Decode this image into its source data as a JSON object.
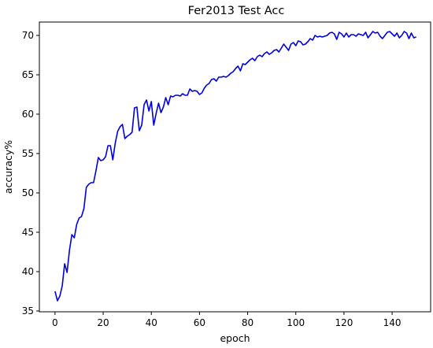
{
  "chart_data": {
    "type": "line",
    "title": "Fer2013 Test Acc",
    "xlabel": "epoch",
    "ylabel": "accuracy%",
    "xlim": [
      -6.5,
      156
    ],
    "ylim": [
      34.9,
      71.7
    ],
    "xticks": [
      0,
      20,
      40,
      60,
      80,
      100,
      120,
      140
    ],
    "yticks": [
      35,
      40,
      45,
      50,
      55,
      60,
      65,
      70
    ],
    "grid": false,
    "series": [
      {
        "color": "#0000dd",
        "points": [
          [
            0,
            37.5
          ],
          [
            1,
            36.3
          ],
          [
            2,
            36.9
          ],
          [
            3,
            38.2
          ],
          [
            4,
            41.0
          ],
          [
            5,
            39.9
          ],
          [
            6,
            42.7
          ],
          [
            7,
            44.7
          ],
          [
            8,
            44.3
          ],
          [
            9,
            46.0
          ],
          [
            10,
            46.8
          ],
          [
            11,
            47.0
          ],
          [
            12,
            48.0
          ],
          [
            13,
            50.7
          ],
          [
            14,
            51.1
          ],
          [
            15,
            51.3
          ],
          [
            16,
            51.3
          ],
          [
            17,
            52.8
          ],
          [
            18,
            54.5
          ],
          [
            19,
            54.1
          ],
          [
            20,
            54.2
          ],
          [
            21,
            54.6
          ],
          [
            22,
            56.0
          ],
          [
            23,
            56.0
          ],
          [
            24,
            54.2
          ],
          [
            25,
            56.3
          ],
          [
            26,
            57.8
          ],
          [
            27,
            58.4
          ],
          [
            28,
            58.7
          ],
          [
            29,
            56.9
          ],
          [
            30,
            57.2
          ],
          [
            31,
            57.4
          ],
          [
            32,
            57.7
          ],
          [
            33,
            60.8
          ],
          [
            34,
            60.9
          ],
          [
            35,
            57.9
          ],
          [
            36,
            58.6
          ],
          [
            37,
            61.2
          ],
          [
            38,
            61.8
          ],
          [
            39,
            60.4
          ],
          [
            40,
            61.6
          ],
          [
            41,
            58.6
          ],
          [
            42,
            60.1
          ],
          [
            43,
            61.4
          ],
          [
            44,
            60.2
          ],
          [
            45,
            60.9
          ],
          [
            46,
            62.1
          ],
          [
            47,
            61.2
          ],
          [
            48,
            62.3
          ],
          [
            49,
            62.2
          ],
          [
            50,
            62.4
          ],
          [
            51,
            62.4
          ],
          [
            52,
            62.3
          ],
          [
            53,
            62.6
          ],
          [
            54,
            62.4
          ],
          [
            55,
            62.4
          ],
          [
            56,
            63.2
          ],
          [
            57,
            62.9
          ],
          [
            58,
            63.0
          ],
          [
            59,
            62.9
          ],
          [
            60,
            62.5
          ],
          [
            61,
            62.7
          ],
          [
            62,
            63.3
          ],
          [
            63,
            63.7
          ],
          [
            64,
            63.9
          ],
          [
            65,
            64.4
          ],
          [
            66,
            64.5
          ],
          [
            67,
            64.2
          ],
          [
            68,
            64.7
          ],
          [
            69,
            64.7
          ],
          [
            70,
            64.8
          ],
          [
            71,
            64.7
          ],
          [
            72,
            64.9
          ],
          [
            73,
            65.2
          ],
          [
            74,
            65.4
          ],
          [
            75,
            65.8
          ],
          [
            76,
            66.1
          ],
          [
            77,
            65.5
          ],
          [
            78,
            66.4
          ],
          [
            79,
            66.3
          ],
          [
            80,
            66.6
          ],
          [
            81,
            66.9
          ],
          [
            82,
            67.1
          ],
          [
            83,
            66.8
          ],
          [
            84,
            67.3
          ],
          [
            85,
            67.5
          ],
          [
            86,
            67.3
          ],
          [
            87,
            67.7
          ],
          [
            88,
            67.9
          ],
          [
            89,
            67.6
          ],
          [
            90,
            67.8
          ],
          [
            91,
            68.1
          ],
          [
            92,
            68.2
          ],
          [
            93,
            67.9
          ],
          [
            94,
            68.4
          ],
          [
            95,
            68.9
          ],
          [
            96,
            68.5
          ],
          [
            97,
            68.1
          ],
          [
            98,
            68.9
          ],
          [
            99,
            69.1
          ],
          [
            100,
            68.7
          ],
          [
            101,
            69.3
          ],
          [
            102,
            69.2
          ],
          [
            103,
            68.8
          ],
          [
            104,
            68.9
          ],
          [
            105,
            69.2
          ],
          [
            106,
            69.6
          ],
          [
            107,
            69.4
          ],
          [
            108,
            70.0
          ],
          [
            109,
            69.8
          ],
          [
            110,
            69.9
          ],
          [
            111,
            69.8
          ],
          [
            112,
            69.9
          ],
          [
            113,
            70.0
          ],
          [
            114,
            70.3
          ],
          [
            115,
            70.4
          ],
          [
            116,
            70.2
          ],
          [
            117,
            69.5
          ],
          [
            118,
            70.4
          ],
          [
            119,
            70.2
          ],
          [
            120,
            69.8
          ],
          [
            121,
            70.3
          ],
          [
            122,
            69.8
          ],
          [
            123,
            70.1
          ],
          [
            124,
            70.1
          ],
          [
            125,
            69.9
          ],
          [
            126,
            70.2
          ],
          [
            127,
            70.1
          ],
          [
            128,
            70.0
          ],
          [
            129,
            70.4
          ],
          [
            130,
            69.7
          ],
          [
            131,
            70.1
          ],
          [
            132,
            70.5
          ],
          [
            133,
            70.3
          ],
          [
            134,
            70.4
          ],
          [
            135,
            69.9
          ],
          [
            136,
            69.6
          ],
          [
            137,
            70.0
          ],
          [
            138,
            70.4
          ],
          [
            139,
            70.5
          ],
          [
            140,
            70.2
          ],
          [
            141,
            69.9
          ],
          [
            142,
            70.3
          ],
          [
            143,
            69.7
          ],
          [
            144,
            70.0
          ],
          [
            145,
            70.5
          ],
          [
            146,
            70.3
          ],
          [
            147,
            69.6
          ],
          [
            148,
            70.3
          ],
          [
            149,
            69.7
          ],
          [
            150,
            69.8
          ]
        ]
      }
    ]
  }
}
